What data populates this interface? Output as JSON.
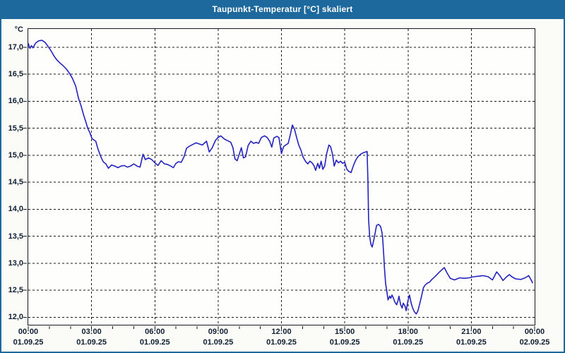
{
  "window": {
    "title": "Taupunkt-Temperatur [°C] skaliert",
    "titlebar_color": "#1d689c",
    "border_color": "#1d689c",
    "background_color": "#fbfcf7"
  },
  "chart_data": {
    "type": "line",
    "title": "Taupunkt-Temperatur [°C] skaliert",
    "unit_label": "°C",
    "grid": "dashed-black-on-white",
    "legend_position": "none",
    "line_color": "#2323c0",
    "label_color": "#0f1e33",
    "xlim_hours": [
      0,
      24
    ],
    "ylim": [
      11.86,
      17.34
    ],
    "x_tick_hours": [
      0,
      3,
      6,
      9,
      12,
      15,
      18,
      21,
      24
    ],
    "x_ticks": [
      {
        "time": "00:00",
        "date": "01.09.25"
      },
      {
        "time": "03:00",
        "date": "01.09.25"
      },
      {
        "time": "06:00",
        "date": "01.09.25"
      },
      {
        "time": "09:00",
        "date": "01.09.25"
      },
      {
        "time": "12:00",
        "date": "01.09.25"
      },
      {
        "time": "15:00",
        "date": "01.09.25"
      },
      {
        "time": "18:00",
        "date": "01.09.25"
      },
      {
        "time": "21:00",
        "date": "01.09.25"
      },
      {
        "time": "00:00",
        "date": "02.09.25"
      }
    ],
    "minor_x_tick_every_hours": 1,
    "y_tick_values": [
      12.0,
      12.5,
      13.0,
      13.5,
      14.0,
      14.5,
      15.0,
      15.5,
      16.0,
      16.5,
      17.0
    ],
    "y_tick_labels": [
      "12,0",
      "12,5",
      "13,0",
      "13,5",
      "14,0",
      "14,5",
      "15,0",
      "15,5",
      "16,0",
      "16,5",
      "17,0"
    ],
    "series": [
      {
        "name": "Taupunkt-Temperatur",
        "color": "#2323c0",
        "points": [
          [
            0.0,
            17.07
          ],
          [
            0.08,
            16.98
          ],
          [
            0.15,
            17.03
          ],
          [
            0.22,
            16.99
          ],
          [
            0.35,
            17.08
          ],
          [
            0.5,
            17.12
          ],
          [
            0.65,
            17.13
          ],
          [
            0.8,
            17.09
          ],
          [
            0.95,
            17.01
          ],
          [
            1.1,
            16.92
          ],
          [
            1.22,
            16.84
          ],
          [
            1.35,
            16.77
          ],
          [
            1.5,
            16.71
          ],
          [
            1.65,
            16.66
          ],
          [
            1.8,
            16.6
          ],
          [
            1.95,
            16.52
          ],
          [
            2.1,
            16.42
          ],
          [
            2.25,
            16.28
          ],
          [
            2.38,
            16.06
          ],
          [
            2.5,
            15.92
          ],
          [
            2.62,
            15.75
          ],
          [
            2.72,
            15.63
          ],
          [
            2.82,
            15.5
          ],
          [
            2.92,
            15.42
          ],
          [
            3.02,
            15.31
          ],
          [
            3.12,
            15.28
          ],
          [
            3.2,
            15.26
          ],
          [
            3.3,
            15.12
          ],
          [
            3.42,
            14.99
          ],
          [
            3.55,
            14.88
          ],
          [
            3.68,
            14.84
          ],
          [
            3.8,
            14.76
          ],
          [
            3.95,
            14.82
          ],
          [
            4.1,
            14.8
          ],
          [
            4.25,
            14.77
          ],
          [
            4.4,
            14.8
          ],
          [
            4.55,
            14.81
          ],
          [
            4.7,
            14.78
          ],
          [
            4.85,
            14.8
          ],
          [
            5.0,
            14.84
          ],
          [
            5.15,
            14.8
          ],
          [
            5.3,
            14.78
          ],
          [
            5.44,
            15.02
          ],
          [
            5.55,
            14.92
          ],
          [
            5.7,
            14.95
          ],
          [
            5.85,
            14.92
          ],
          [
            6.0,
            14.86
          ],
          [
            6.15,
            14.81
          ],
          [
            6.3,
            14.9
          ],
          [
            6.45,
            14.84
          ],
          [
            6.6,
            14.83
          ],
          [
            6.75,
            14.8
          ],
          [
            6.88,
            14.77
          ],
          [
            7.0,
            14.85
          ],
          [
            7.12,
            14.88
          ],
          [
            7.25,
            14.87
          ],
          [
            7.38,
            14.97
          ],
          [
            7.5,
            15.13
          ],
          [
            7.65,
            15.17
          ],
          [
            7.8,
            15.2
          ],
          [
            7.95,
            15.23
          ],
          [
            8.1,
            15.21
          ],
          [
            8.25,
            15.19
          ],
          [
            8.45,
            15.26
          ],
          [
            8.58,
            15.06
          ],
          [
            8.72,
            15.14
          ],
          [
            8.88,
            15.28
          ],
          [
            9.0,
            15.33
          ],
          [
            9.12,
            15.36
          ],
          [
            9.3,
            15.3
          ],
          [
            9.45,
            15.27
          ],
          [
            9.6,
            15.24
          ],
          [
            9.7,
            15.14
          ],
          [
            9.8,
            14.93
          ],
          [
            9.9,
            14.9
          ],
          [
            10.0,
            15.02
          ],
          [
            10.1,
            15.14
          ],
          [
            10.2,
            14.95
          ],
          [
            10.3,
            14.97
          ],
          [
            10.42,
            15.18
          ],
          [
            10.55,
            15.26
          ],
          [
            10.68,
            15.22
          ],
          [
            10.8,
            15.24
          ],
          [
            10.92,
            15.22
          ],
          [
            11.05,
            15.33
          ],
          [
            11.2,
            15.36
          ],
          [
            11.32,
            15.33
          ],
          [
            11.44,
            15.26
          ],
          [
            11.54,
            15.15
          ],
          [
            11.64,
            15.32
          ],
          [
            11.78,
            15.35
          ],
          [
            11.88,
            15.33
          ],
          [
            12.0,
            15.03
          ],
          [
            12.1,
            15.16
          ],
          [
            12.2,
            15.19
          ],
          [
            12.32,
            15.22
          ],
          [
            12.42,
            15.38
          ],
          [
            12.52,
            15.56
          ],
          [
            12.62,
            15.48
          ],
          [
            12.72,
            15.33
          ],
          [
            12.82,
            15.19
          ],
          [
            12.92,
            15.1
          ],
          [
            13.02,
            14.97
          ],
          [
            13.15,
            14.88
          ],
          [
            13.25,
            14.84
          ],
          [
            13.35,
            14.89
          ],
          [
            13.45,
            14.86
          ],
          [
            13.55,
            14.8
          ],
          [
            13.62,
            14.72
          ],
          [
            13.72,
            14.85
          ],
          [
            13.8,
            14.76
          ],
          [
            13.88,
            14.89
          ],
          [
            13.96,
            14.74
          ],
          [
            14.05,
            14.8
          ],
          [
            14.15,
            15.04
          ],
          [
            14.25,
            15.19
          ],
          [
            14.33,
            15.16
          ],
          [
            14.42,
            15.02
          ],
          [
            14.5,
            14.8
          ],
          [
            14.6,
            14.91
          ],
          [
            14.7,
            14.86
          ],
          [
            14.8,
            14.89
          ],
          [
            14.9,
            14.85
          ],
          [
            15.0,
            14.87
          ],
          [
            15.1,
            14.74
          ],
          [
            15.2,
            14.7
          ],
          [
            15.3,
            14.68
          ],
          [
            15.42,
            14.82
          ],
          [
            15.52,
            14.91
          ],
          [
            15.62,
            14.97
          ],
          [
            15.75,
            15.02
          ],
          [
            15.9,
            15.05
          ],
          [
            16.06,
            15.07
          ],
          [
            16.1,
            14.5
          ],
          [
            16.13,
            13.81
          ],
          [
            16.18,
            13.5
          ],
          [
            16.24,
            13.35
          ],
          [
            16.3,
            13.3
          ],
          [
            16.38,
            13.44
          ],
          [
            16.46,
            13.6
          ],
          [
            16.51,
            13.7
          ],
          [
            16.6,
            13.72
          ],
          [
            16.7,
            13.68
          ],
          [
            16.76,
            13.58
          ],
          [
            16.79,
            13.5
          ],
          [
            16.85,
            13.14
          ],
          [
            16.88,
            12.92
          ],
          [
            16.94,
            12.61
          ],
          [
            16.98,
            12.52
          ],
          [
            17.05,
            12.32
          ],
          [
            17.13,
            12.39
          ],
          [
            17.18,
            12.35
          ],
          [
            17.24,
            12.41
          ],
          [
            17.29,
            12.37
          ],
          [
            17.38,
            12.28
          ],
          [
            17.46,
            12.23
          ],
          [
            17.52,
            12.3
          ],
          [
            17.57,
            12.39
          ],
          [
            17.65,
            12.23
          ],
          [
            17.72,
            12.17
          ],
          [
            17.77,
            12.26
          ],
          [
            17.85,
            12.21
          ],
          [
            17.91,
            12.12
          ],
          [
            17.99,
            12.3
          ],
          [
            18.07,
            12.41
          ],
          [
            18.15,
            12.26
          ],
          [
            18.22,
            12.17
          ],
          [
            18.3,
            12.1
          ],
          [
            18.39,
            12.06
          ],
          [
            18.47,
            12.12
          ],
          [
            18.56,
            12.26
          ],
          [
            18.64,
            12.39
          ],
          [
            18.72,
            12.54
          ],
          [
            18.8,
            12.59
          ],
          [
            18.91,
            12.63
          ],
          [
            19.02,
            12.65
          ],
          [
            19.13,
            12.7
          ],
          [
            19.3,
            12.76
          ],
          [
            19.47,
            12.83
          ],
          [
            19.64,
            12.89
          ],
          [
            19.72,
            12.92
          ],
          [
            19.85,
            12.82
          ],
          [
            20.0,
            12.72
          ],
          [
            20.2,
            12.69
          ],
          [
            20.45,
            12.73
          ],
          [
            20.65,
            12.72
          ],
          [
            20.9,
            12.73
          ],
          [
            21.1,
            12.75
          ],
          [
            21.35,
            12.76
          ],
          [
            21.55,
            12.77
          ],
          [
            21.8,
            12.75
          ],
          [
            22.0,
            12.69
          ],
          [
            22.2,
            12.84
          ],
          [
            22.35,
            12.77
          ],
          [
            22.5,
            12.68
          ],
          [
            22.62,
            12.73
          ],
          [
            22.8,
            12.79
          ],
          [
            22.92,
            12.75
          ],
          [
            23.1,
            12.71
          ],
          [
            23.35,
            12.7
          ],
          [
            23.55,
            12.73
          ],
          [
            23.72,
            12.77
          ],
          [
            23.82,
            12.7
          ],
          [
            23.9,
            12.64
          ]
        ]
      }
    ]
  }
}
